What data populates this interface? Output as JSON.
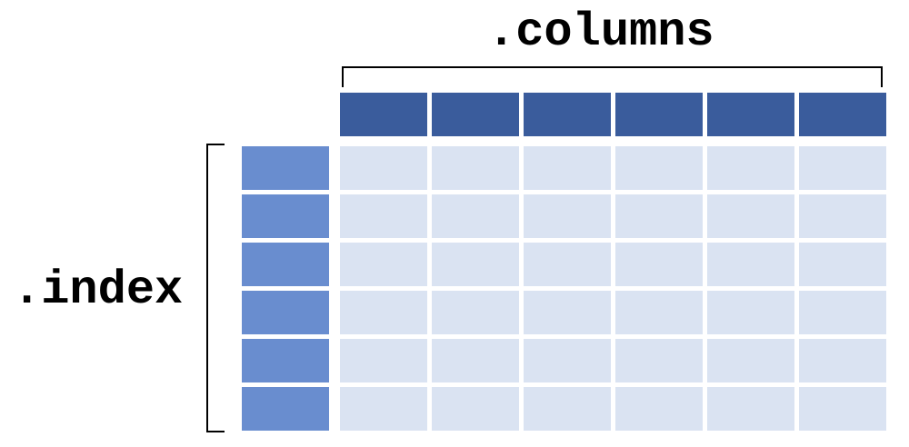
{
  "labels": {
    "columns": ".columns",
    "index": ".index"
  },
  "colors": {
    "column_header": "#3a5c9c",
    "index_cell": "#698dcf",
    "data_cell": "#dae3f2",
    "bracket": "#000000"
  },
  "grid": {
    "num_columns": 6,
    "num_rows": 6
  }
}
